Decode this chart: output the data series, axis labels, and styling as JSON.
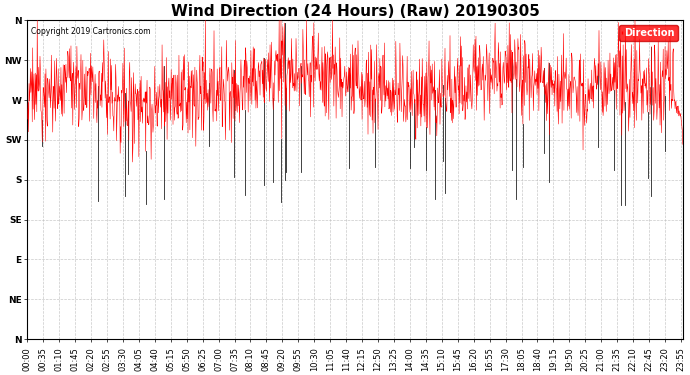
{
  "title": "Wind Direction (24 Hours) (Raw) 20190305",
  "copyright": "Copyright 2019 Cartronics.com",
  "ylabel_ticks": [
    360,
    315,
    270,
    225,
    180,
    135,
    90,
    45,
    0
  ],
  "ylabel_labels": [
    "N",
    "NW",
    "W",
    "SW",
    "S",
    "SE",
    "E",
    "NE",
    "N"
  ],
  "ylim": [
    0,
    360
  ],
  "legend_label": "Direction",
  "legend_bg": "#ff0000",
  "legend_text_color": "#ffffff",
  "line_color": "#ff0000",
  "dark_spike_color": "#222222",
  "background_color": "#ffffff",
  "grid_color": "#bbbbbb",
  "title_fontsize": 11,
  "tick_fontsize": 6.5,
  "seed": 12345,
  "num_points": 1440
}
